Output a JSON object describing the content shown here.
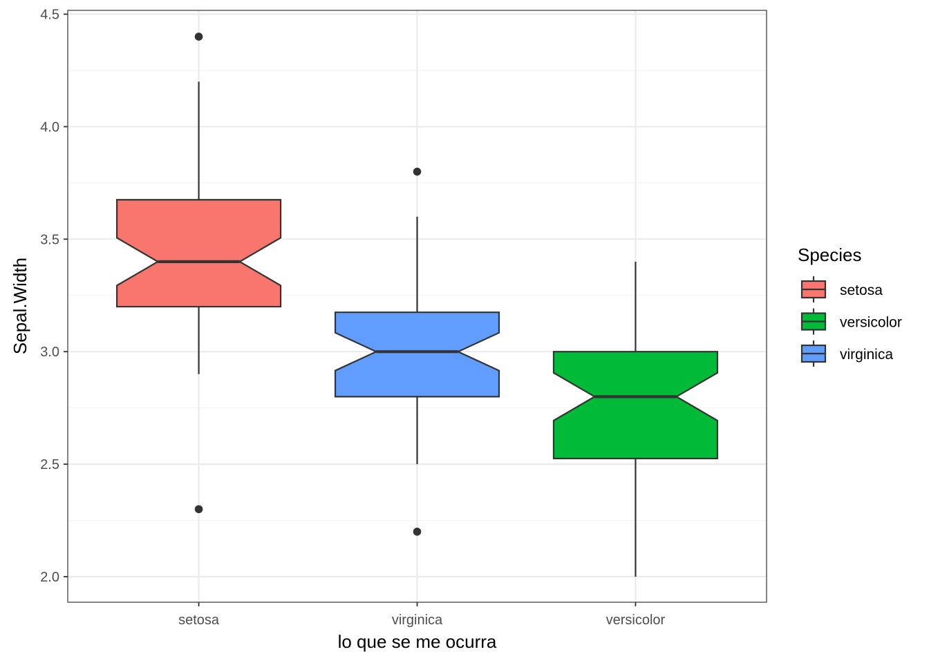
{
  "chart_data": {
    "type": "boxplot",
    "notched": true,
    "xlabel": "lo que se me ocurra",
    "ylabel": "Sepal.Width",
    "ylim": [
      1.9,
      4.52
    ],
    "yticks": [
      "2.0",
      "2.5",
      "3.0",
      "3.5",
      "4.0",
      "4.5"
    ],
    "categories": [
      "setosa",
      "virginica",
      "versicolor"
    ],
    "boxes": [
      {
        "category": "setosa",
        "color": "#F8766D",
        "whisker_low": 2.9,
        "q1": 3.2,
        "median": 3.4,
        "q3": 3.675,
        "whisker_high": 4.2,
        "notch_low": 3.294,
        "notch_high": 3.506,
        "outliers": [
          4.4,
          2.3
        ]
      },
      {
        "category": "virginica",
        "color": "#619CFF",
        "whisker_low": 2.5,
        "q1": 2.8,
        "median": 3.0,
        "q3": 3.175,
        "whisker_high": 3.6,
        "notch_low": 2.916,
        "notch_high": 3.084,
        "outliers": [
          3.8,
          2.2
        ]
      },
      {
        "category": "versicolor",
        "color": "#00BA38",
        "whisker_low": 2.0,
        "q1": 2.525,
        "median": 2.8,
        "q3": 3.0,
        "whisker_high": 3.4,
        "notch_low": 2.694,
        "notch_high": 2.906,
        "outliers": []
      }
    ],
    "legend": {
      "title": "Species",
      "position": "right",
      "items": [
        {
          "label": "setosa",
          "color": "#F8766D"
        },
        {
          "label": "versicolor",
          "color": "#00BA38"
        },
        {
          "label": "virginica",
          "color": "#619CFF"
        }
      ]
    },
    "grid": true,
    "theme": "bw"
  }
}
